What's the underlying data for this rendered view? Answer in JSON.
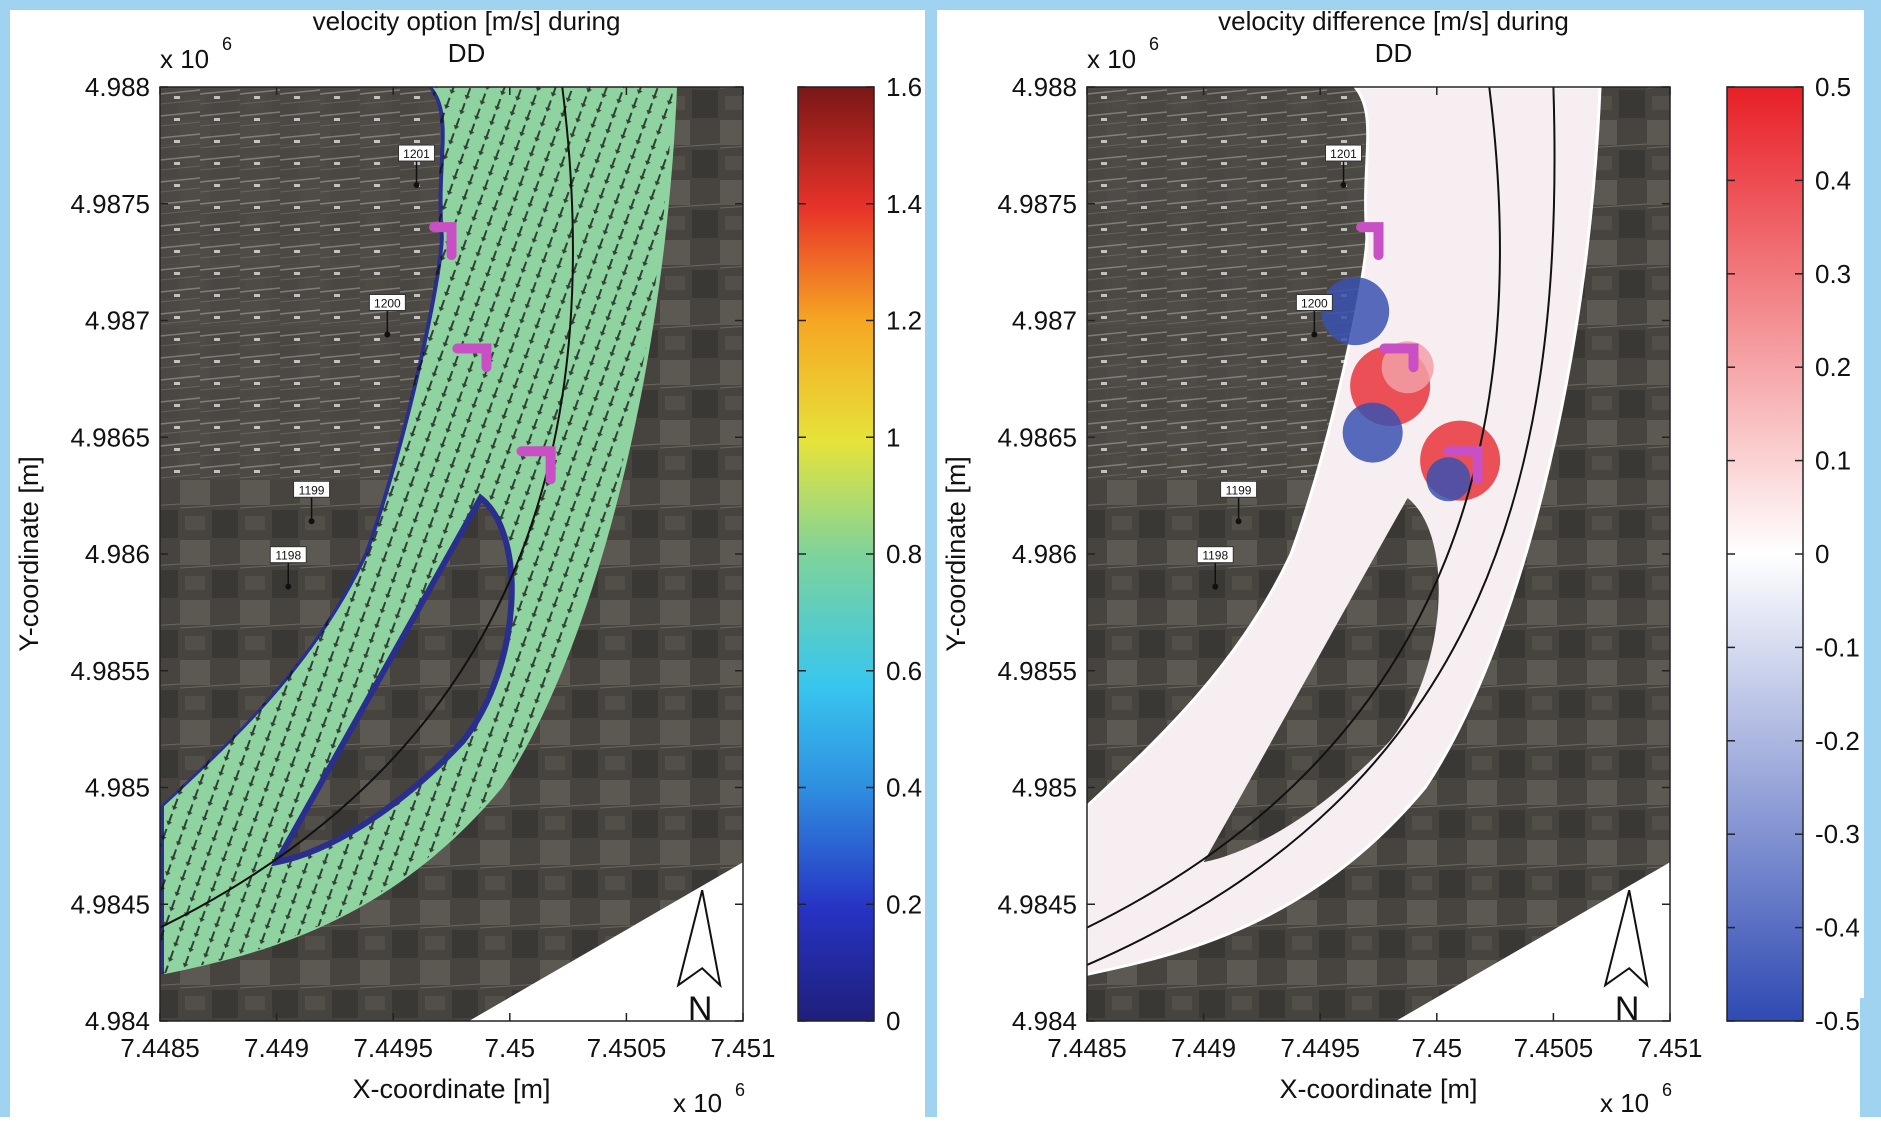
{
  "colors": {
    "background_accent": "#9fd3ef",
    "panel_bg": "#ffffff",
    "satellite_dark": "#3b3833",
    "satellite_field": "#5a5650",
    "channel_green": "#9cd66a",
    "channel_yellow": "#e9e23b",
    "channel_cyan": "#36b7e6",
    "channel_blue": "#2a2e8c",
    "groyne_marker": "#c94fc4",
    "diff_red": "#e8343a",
    "diff_blue": "#3a51b0"
  },
  "chart_data": [
    {
      "type": "heatmap",
      "title": "velocity option [m/s] during\nDD",
      "title_lines": [
        "velocity option [m/s] during",
        "DD"
      ],
      "xlabel": "X-coordinate [m]",
      "ylabel": "Y-coordinate [m]",
      "x_exponent_label": "x 10",
      "x_exponent_sup": "6",
      "y_exponent_label": "x 10",
      "y_exponent_sup": "6",
      "xlim": [
        7.4485,
        7.451
      ],
      "ylim": [
        4.984,
        4.988
      ],
      "x_ticks": [
        "7.4485",
        "7.449",
        "7.4495",
        "7.45",
        "7.4505",
        "7.451"
      ],
      "y_ticks": [
        "4.984",
        "4.9845",
        "4.985",
        "4.9855",
        "4.986",
        "4.9865",
        "4.987",
        "4.9875",
        "4.988"
      ],
      "colorbar": {
        "range": [
          0,
          1.6
        ],
        "ticks": [
          "0",
          "0.2",
          "0.4",
          "0.6",
          "0.8",
          "1",
          "1.2",
          "1.4",
          "1.6"
        ],
        "colormap": "jet"
      },
      "point_labels": [
        "1201",
        "1200",
        "1199",
        "1198"
      ],
      "north_label": "N",
      "overlay": "velocity vectors",
      "grid": false
    },
    {
      "type": "heatmap",
      "title": "velocity difference [m/s] during\nDD",
      "title_lines": [
        "velocity difference [m/s] during",
        "DD"
      ],
      "xlabel": "X-coordinate [m]",
      "ylabel": "Y-coordinate [m]",
      "x_exponent_label": "x 10",
      "x_exponent_sup": "6",
      "y_exponent_label": "x 10",
      "y_exponent_sup": "6",
      "xlim": [
        7.4485,
        7.451
      ],
      "ylim": [
        4.984,
        4.988
      ],
      "x_ticks": [
        "7.4485",
        "7.449",
        "7.4495",
        "7.45",
        "7.4505",
        "7.451"
      ],
      "y_ticks": [
        "4.984",
        "4.9845",
        "4.985",
        "4.9855",
        "4.986",
        "4.9865",
        "4.987",
        "4.9875",
        "4.988"
      ],
      "colorbar": {
        "range": [
          -0.5,
          0.5
        ],
        "ticks": [
          "-0.5",
          "-0.4",
          "-0.3",
          "-0.2",
          "-0.1",
          "0",
          "0.1",
          "0.2",
          "0.3",
          "0.4",
          "0.5"
        ],
        "colormap": "blue-white-red"
      },
      "point_labels": [
        "1201",
        "1200",
        "1199",
        "1198"
      ],
      "north_label": "N",
      "grid": false
    }
  ]
}
